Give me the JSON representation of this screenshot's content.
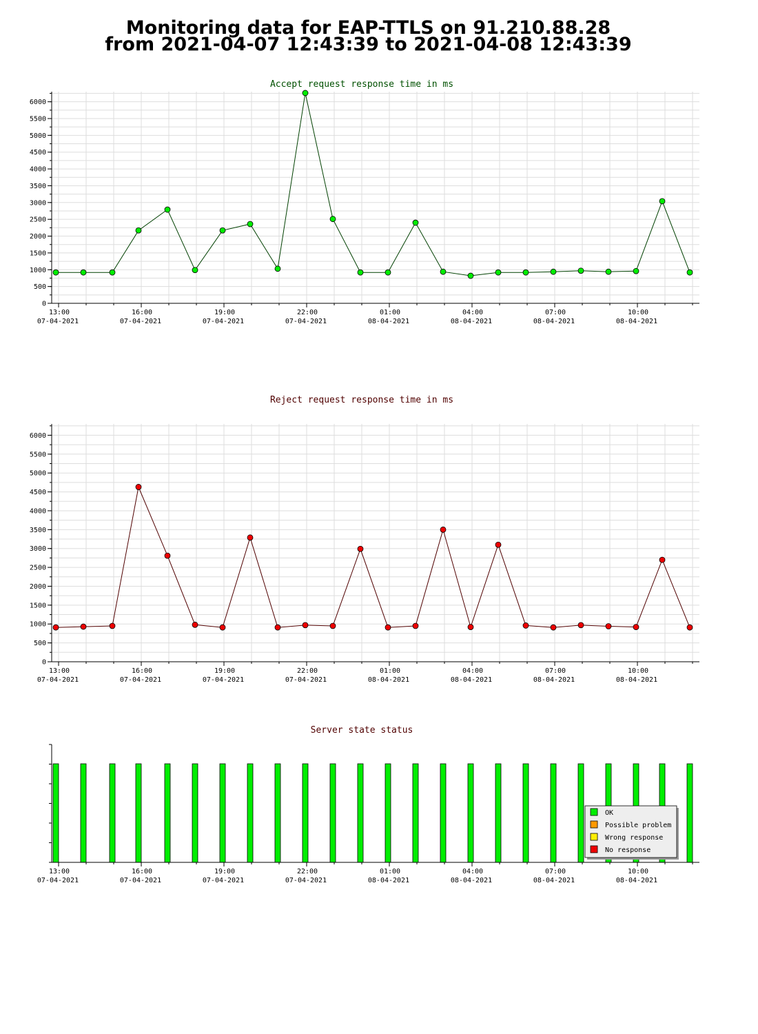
{
  "page": {
    "title_line1": "Monitoring data for EAP-TTLS on 91.210.88.28",
    "title_line2": "from 2021-04-07 12:43:39 to 2021-04-08 12:43:39"
  },
  "time_ticks": [
    {
      "time": "13:00",
      "date": "07-04-2021",
      "x": 0
    },
    {
      "time": "16:00",
      "date": "07-04-2021",
      "x": 3
    },
    {
      "time": "19:00",
      "date": "07-04-2021",
      "x": 6
    },
    {
      "time": "22:00",
      "date": "07-04-2021",
      "x": 9
    },
    {
      "time": "01:00",
      "date": "08-04-2021",
      "x": 12
    },
    {
      "time": "04:00",
      "date": "08-04-2021",
      "x": 15
    },
    {
      "time": "07:00",
      "date": "08-04-2021",
      "x": 18
    },
    {
      "time": "10:00",
      "date": "08-04-2021",
      "x": 21
    }
  ],
  "colors": {
    "accept_line": "#004000",
    "accept_point": "#00ee00",
    "accept_title": "#005000",
    "reject_line": "#500000",
    "reject_point": "#ee0000",
    "reject_title": "#500000",
    "status_title": "#500000",
    "status_ok": "#00ee00",
    "status_possible": "#ff9900",
    "status_wrong": "#ffee00",
    "status_none": "#ee0000"
  },
  "chart_data": [
    {
      "type": "line",
      "title": "Accept request response time in ms",
      "x_unit": "hours after 13:00 07-04-2021",
      "xlim": [
        -0.25,
        23.25
      ],
      "ylim": [
        0,
        6300
      ],
      "yticks": [
        0,
        500,
        1000,
        1500,
        2000,
        2500,
        3000,
        3500,
        4000,
        4500,
        5000,
        5500,
        6000
      ],
      "grid": true,
      "x": [
        -0.1,
        0.9,
        1.95,
        2.9,
        3.95,
        4.95,
        5.95,
        6.95,
        7.95,
        8.95,
        9.95,
        10.95,
        11.95,
        12.95,
        13.95,
        14.95,
        15.95,
        16.95,
        17.95,
        18.95,
        19.95,
        20.95,
        21.9,
        22.9
      ],
      "y": [
        920,
        920,
        920,
        2170,
        2790,
        990,
        2170,
        2360,
        1030,
        6260,
        2510,
        920,
        920,
        2400,
        940,
        820,
        920,
        920,
        940,
        970,
        940,
        960,
        3040,
        920
      ]
    },
    {
      "type": "line",
      "title": "Reject request response time in ms",
      "x_unit": "hours after 13:00 07-04-2021",
      "xlim": [
        -0.25,
        23.25
      ],
      "ylim": [
        0,
        6300
      ],
      "yticks": [
        0,
        500,
        1000,
        1500,
        2000,
        2500,
        3000,
        3500,
        4000,
        4500,
        5000,
        5500,
        6000
      ],
      "grid": true,
      "x": [
        -0.1,
        0.9,
        1.95,
        2.9,
        3.95,
        4.95,
        5.95,
        6.95,
        7.95,
        8.95,
        9.95,
        10.95,
        11.95,
        12.95,
        13.95,
        14.95,
        15.95,
        16.95,
        17.95,
        18.95,
        19.95,
        20.95,
        21.9,
        22.9
      ],
      "y": [
        910,
        930,
        950,
        4630,
        2810,
        980,
        910,
        3290,
        910,
        970,
        950,
        2990,
        910,
        950,
        3500,
        920,
        3100,
        960,
        910,
        970,
        940,
        920,
        2700,
        910
      ]
    },
    {
      "type": "bar",
      "title": "Server state status",
      "x_unit": "hours after 13:00 07-04-2021",
      "xlim": [
        -0.25,
        23.25
      ],
      "grid": false,
      "x": [
        -0.1,
        0.9,
        1.95,
        2.9,
        3.95,
        4.95,
        5.95,
        6.95,
        7.95,
        8.95,
        9.95,
        10.95,
        11.95,
        12.95,
        13.95,
        14.95,
        15.95,
        16.95,
        17.95,
        18.95,
        19.95,
        20.95,
        21.9,
        22.9
      ],
      "status": [
        "OK",
        "OK",
        "OK",
        "OK",
        "OK",
        "OK",
        "OK",
        "OK",
        "OK",
        "OK",
        "OK",
        "OK",
        "OK",
        "OK",
        "OK",
        "OK",
        "OK",
        "OK",
        "OK",
        "OK",
        "OK",
        "OK",
        "OK",
        "OK"
      ],
      "legend": [
        "OK",
        "Possible problem",
        "Wrong response",
        "No response"
      ],
      "legend_placement": "bottom-right"
    }
  ]
}
